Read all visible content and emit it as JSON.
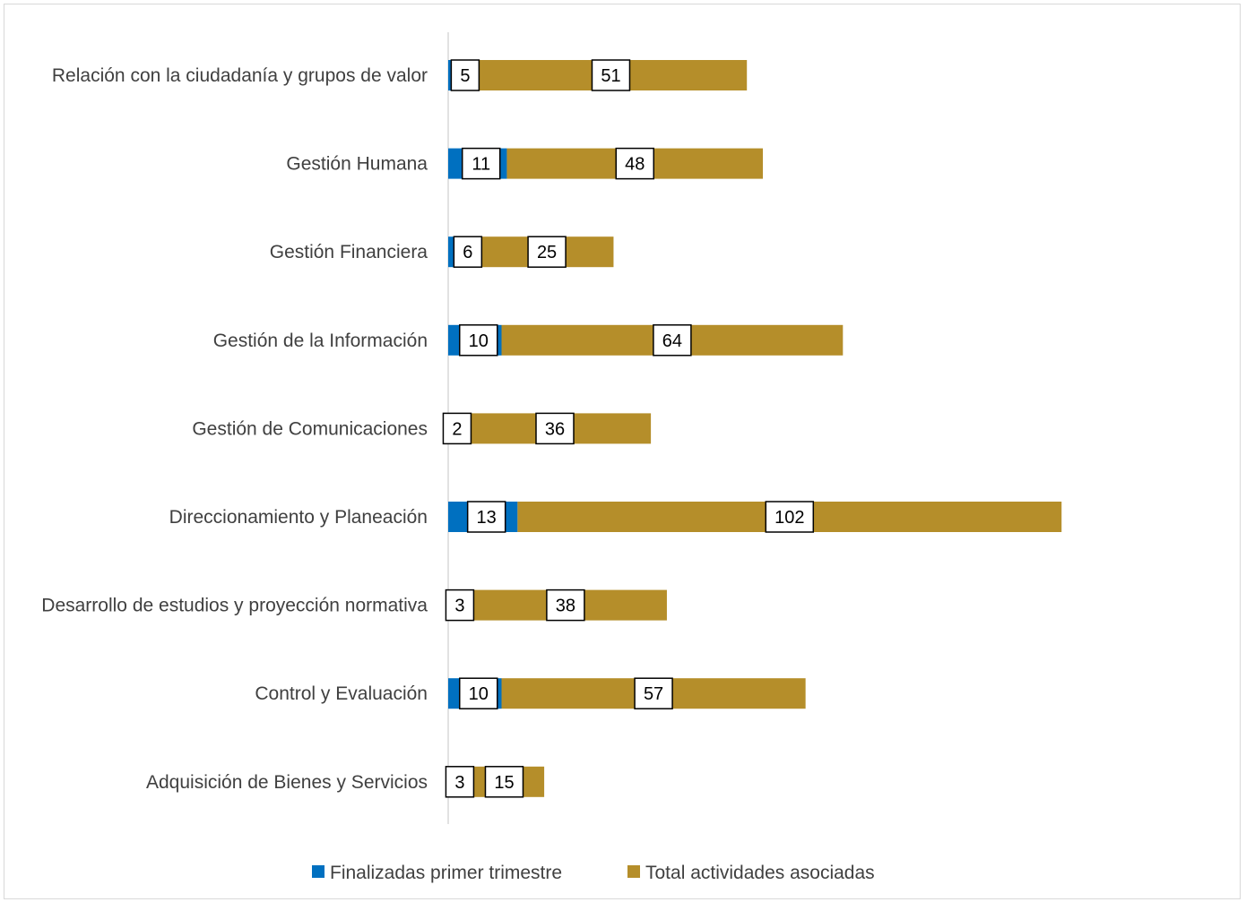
{
  "chart_data": {
    "type": "bar",
    "orientation": "horizontal",
    "stacked": true,
    "categories": [
      "Relación con la ciudadanía y grupos de valor",
      "Gestión Humana",
      "Gestión Financiera",
      "Gestión de la Información",
      "Gestión de Comunicaciones",
      "Direccionamiento y Planeación",
      "Desarrollo de estudios y proyección normativa",
      "Control y Evaluación",
      "Adquisición de Bienes y Servicios"
    ],
    "series": [
      {
        "name": "Finalizadas primer trimestre",
        "color": "#0070C0",
        "values": [
          5,
          11,
          6,
          10,
          2,
          13,
          3,
          10,
          3
        ]
      },
      {
        "name": "Total actividades asociadas",
        "color": "#B58E2A",
        "values": [
          51,
          48,
          25,
          64,
          36,
          102,
          38,
          57,
          15
        ]
      }
    ],
    "legend_position": "bottom",
    "grid": false
  }
}
